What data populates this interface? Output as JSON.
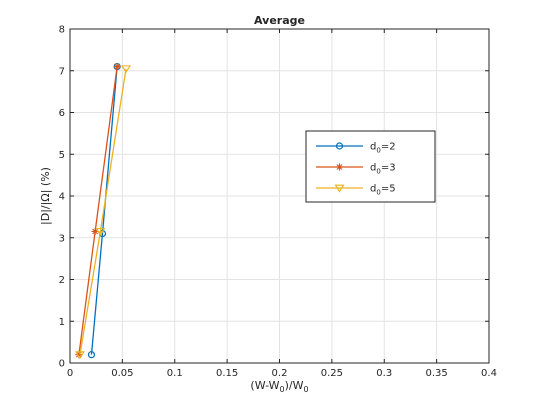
{
  "chart_data": {
    "type": "line",
    "title": "Average",
    "xlabel": {
      "base": "(W-W",
      "sub": "0",
      "mid": ")/W",
      "sub2": "0"
    },
    "ylabel": "|D|/|Ω| (%)",
    "xlim": [
      0,
      0.4
    ],
    "ylim": [
      0,
      8
    ],
    "xticks": [
      0,
      0.05,
      0.1,
      0.15,
      0.2,
      0.25,
      0.3,
      0.35,
      0.4
    ],
    "xtick_labels": [
      "0",
      "0.05",
      "0.1",
      "0.15",
      "0.2",
      "0.25",
      "0.3",
      "0.35",
      "0.4"
    ],
    "yticks": [
      0,
      1,
      2,
      3,
      4,
      5,
      6,
      7,
      8
    ],
    "ytick_labels": [
      "0",
      "1",
      "2",
      "3",
      "4",
      "5",
      "6",
      "7",
      "8"
    ],
    "grid": true,
    "legend_position": "center-right",
    "series": [
      {
        "name": "d",
        "name_sub": "0",
        "name_suffix": "=2",
        "marker": "circle",
        "color": "#0072bd",
        "points": [
          [
            0.0205,
            0.2
          ],
          [
            0.031,
            3.1
          ],
          [
            0.045,
            7.1
          ]
        ]
      },
      {
        "name": "d",
        "name_sub": "0",
        "name_suffix": "=3",
        "marker": "asterisk",
        "color": "#d95319",
        "points": [
          [
            0.0085,
            0.2
          ],
          [
            0.024,
            3.15
          ],
          [
            0.045,
            7.1
          ]
        ]
      },
      {
        "name": "d",
        "name_sub": "0",
        "name_suffix": "=5",
        "marker": "triangle-down",
        "color": "#edb120",
        "points": [
          [
            0.0095,
            0.2
          ],
          [
            0.029,
            3.15
          ],
          [
            0.0535,
            7.05
          ]
        ]
      }
    ]
  }
}
